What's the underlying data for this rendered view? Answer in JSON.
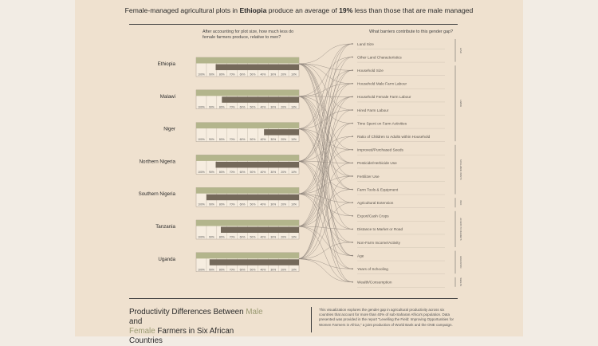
{
  "title": {
    "pre": "Female-managed agricultural plots in ",
    "country": "Ethiopia",
    "mid": " produce an average of ",
    "pct": "19%",
    "post": " less than those that are male managed"
  },
  "left_question": "After accounting for plot size, how much less do female farmers produce, relative to men?",
  "right_question": "What barriers contribute to this gender gap?",
  "footer": {
    "line1_pre": "Productivity Differences Between ",
    "male": "Male",
    "line1_post": " and",
    "female": "Female",
    "line2_post": " Farmers in Six African Countries",
    "description": "This visualization explores the gender gap in agricultural productivity across six countries that account for more than 40% of sub-Saharan Africa's population. Data presented was provided in the report \"Levelling the Field: Improving Opportunities for Women Farmers in Africa,\" a joint production of World Bank and the ONE campaign."
  },
  "colors": {
    "background": "#efe1cf",
    "male_bar": "#b3b58c",
    "female_bar": "#74695a",
    "link": "#8b8178",
    "rule": "#3e3e3e"
  },
  "chart_data": {
    "type": "bar",
    "title": "Female-managed agricultural plots in Ethiopia produce an average of 19% less than those that are male managed",
    "tick_labels": [
      "100%",
      "90%",
      "80%",
      "70%",
      "60%",
      "50%",
      "40%",
      "30%",
      "20%",
      "10%"
    ],
    "categories": [
      "Ethiopia",
      "Malawi",
      "Niger",
      "Northern Nigeria",
      "Southern Nigeria",
      "Tanzania",
      "Uganda"
    ],
    "series": [
      {
        "name": "Male",
        "values": [
          100,
          100,
          100,
          100,
          100,
          100,
          100
        ]
      },
      {
        "name": "Female",
        "values": [
          81,
          75,
          34,
          81,
          90,
          76,
          87
        ]
      }
    ],
    "ylim": [
      0,
      100
    ],
    "barriers": [
      "Land Size",
      "Other Land Characteristics",
      "Household Size",
      "Household Male Farm Labour",
      "Household Female Farm Labour",
      "Hired Farm Labour",
      "Time Spent on Farm Activities",
      "Ratio of Children to Adults within Household",
      "Improved/Purchased Seeds",
      "Pesticide/Herbicide Use",
      "Fertilizer Use",
      "Farm Tools & Equipment",
      "Agricultural Extension",
      "Export/Cash Crops",
      "Distance to Market or Road",
      "Non-Farm Income/Activity",
      "Age",
      "Years of Schooling",
      "Wealth/Consumption"
    ],
    "barrier_groups": [
      {
        "label": "LAND",
        "from": 0,
        "to": 1
      },
      {
        "label": "LABOR",
        "from": 2,
        "to": 7
      },
      {
        "label": "NON-LABOR INPUTS",
        "from": 8,
        "to": 11
      },
      {
        "label": "INFO",
        "from": 12,
        "to": 12
      },
      {
        "label": "ACCESS TO MARKETS",
        "from": 13,
        "to": 15
      },
      {
        "label": "EDUCATION",
        "from": 16,
        "to": 17
      },
      {
        "label": "WEALTH",
        "from": 18,
        "to": 18
      }
    ],
    "links": [
      [
        0,
        2,
        3,
        5,
        8,
        9,
        10,
        11,
        14,
        16
      ],
      [
        1,
        3,
        4,
        6,
        9,
        11,
        13,
        16,
        18
      ],
      [
        0,
        2,
        5,
        8,
        10,
        12,
        15,
        17
      ],
      [
        0,
        1,
        3,
        4,
        7,
        9,
        11,
        14,
        16,
        18
      ],
      [
        2,
        4,
        6,
        8,
        10,
        12,
        13,
        15,
        17
      ],
      [
        0,
        3,
        5,
        7,
        9,
        11,
        14,
        16,
        18
      ],
      [
        1,
        2,
        4,
        6,
        10,
        12,
        15,
        17,
        18
      ]
    ]
  }
}
